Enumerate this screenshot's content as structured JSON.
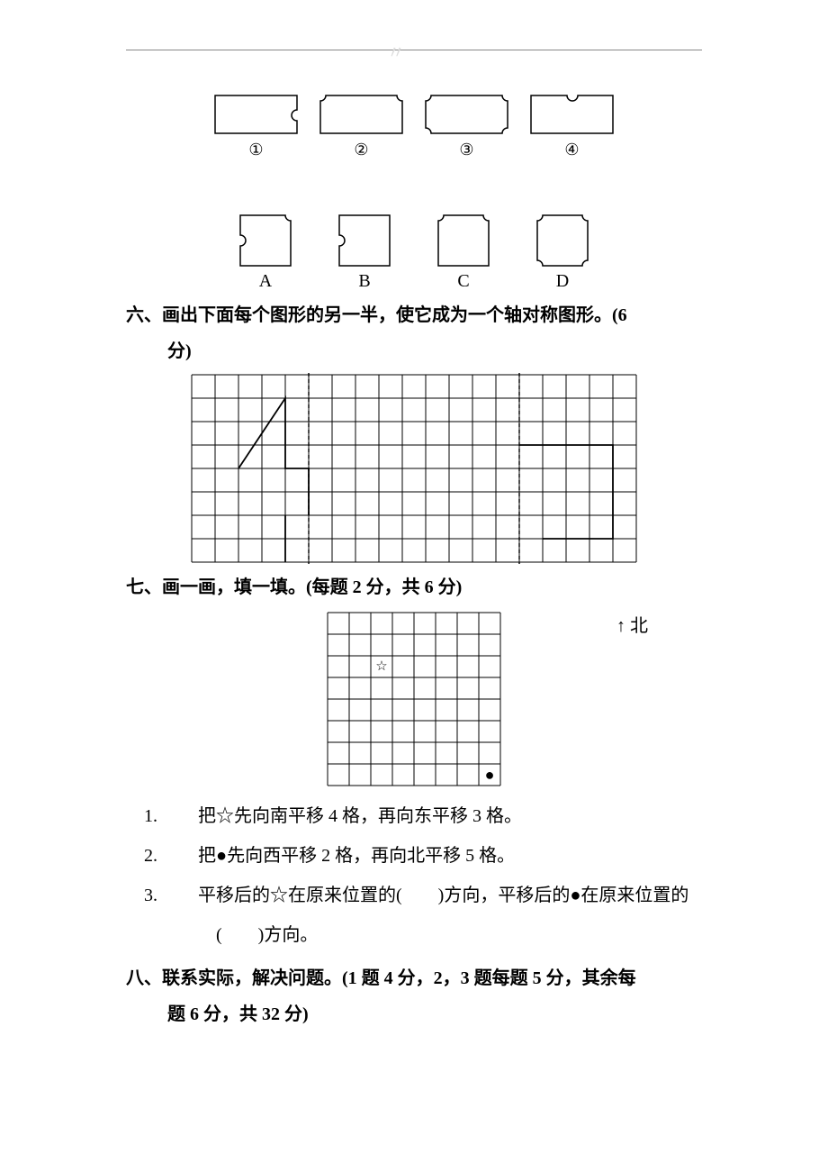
{
  "topRow": {
    "labels": [
      "①",
      "②",
      "③",
      "④"
    ],
    "shape_stroke": "#000000",
    "shape_fill": "none",
    "shape_stroke_width": 1.5
  },
  "secondRow": {
    "labels": [
      "A",
      "B",
      "C",
      "D"
    ],
    "shape_stroke": "#000000",
    "shape_fill": "none",
    "shape_stroke_width": 1.5
  },
  "sectionSix": {
    "title_line1": "六、画出下面每个图形的另一半，使它成为一个轴对称图形。(6",
    "title_line2": "分)",
    "grid": {
      "cols": 19,
      "rows": 8,
      "cell": 26,
      "line_color": "#000000",
      "line_width": 1,
      "dash_axis1_col": 5,
      "dash_axis2_col": 14,
      "dash_pattern": "4,3"
    }
  },
  "sectionSeven": {
    "title": "七、画一画，填一填。(每题 2 分，共 6 分)",
    "north_arrow": "↑",
    "north_label": "北",
    "grid": {
      "cols": 8,
      "rows": 8,
      "cell": 24,
      "line_color": "#000000",
      "line_width": 1,
      "star_col": 2,
      "star_row": 2,
      "star_glyph": "☆",
      "dot_col": 7,
      "dot_row": 7,
      "dot_glyph": "●"
    },
    "items": [
      {
        "num": "1.",
        "text": "把☆先向南平移 4 格，再向东平移 3 格。"
      },
      {
        "num": "2.",
        "text": "把●先向西平移 2 格，再向北平移 5 格。"
      },
      {
        "num": "3.",
        "text": "平移后的☆在原来位置的(　　)方向，平移后的●在原来位置的"
      }
    ],
    "item3_line2": "(　　)方向。"
  },
  "sectionEight": {
    "title_line1": "八、联系实际，解决问题。(1 题 4 分，2，3 题每题 5 分，其余每",
    "title_line2": "题 6 分，共 32 分)"
  }
}
